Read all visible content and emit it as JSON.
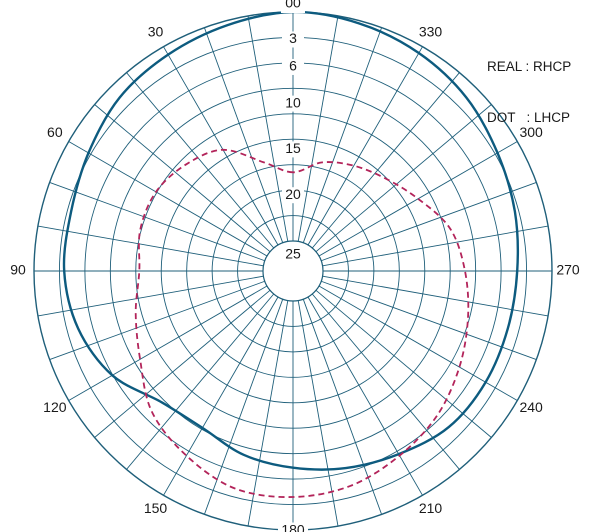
{
  "chart_data": {
    "type": "polar",
    "angle_labels": [
      {
        "angle": 0,
        "text": "00"
      },
      {
        "angle": 30,
        "text": "30"
      },
      {
        "angle": 60,
        "text": "60"
      },
      {
        "angle": 90,
        "text": "90"
      },
      {
        "angle": 120,
        "text": "120"
      },
      {
        "angle": 150,
        "text": "150"
      },
      {
        "angle": 180,
        "text": "180"
      },
      {
        "angle": 210,
        "text": "210"
      },
      {
        "angle": 240,
        "text": "240"
      },
      {
        "angle": 270,
        "text": "270"
      },
      {
        "angle": 300,
        "text": "300"
      },
      {
        "angle": 330,
        "text": "330"
      }
    ],
    "radial_labels": [
      "3",
      "6",
      "10",
      "15",
      "20",
      "25"
    ],
    "radial_range": [
      0,
      25
    ],
    "legend": [
      "REAL : RHCP",
      "DOT   : LHCP"
    ],
    "grid": true,
    "colors": {
      "grid": "#1f5f7a",
      "rhcp": "#0d5b7f",
      "lhcp": "#b3245a"
    },
    "series": [
      {
        "name": "RHCP",
        "style": "solid",
        "points": [
          [
            0,
            0.0
          ],
          [
            15,
            0.5
          ],
          [
            30,
            1.0
          ],
          [
            45,
            1.5
          ],
          [
            60,
            2.5
          ],
          [
            75,
            3.2
          ],
          [
            90,
            3.3
          ],
          [
            105,
            4.0
          ],
          [
            120,
            5.5
          ],
          [
            135,
            8.0
          ],
          [
            150,
            8.5
          ],
          [
            165,
            7.5
          ],
          [
            180,
            6.8
          ],
          [
            195,
            6.0
          ],
          [
            210,
            5.2
          ],
          [
            225,
            4.2
          ],
          [
            240,
            4.0
          ],
          [
            255,
            4.0
          ],
          [
            270,
            3.8
          ],
          [
            285,
            3.2
          ],
          [
            300,
            2.5
          ],
          [
            315,
            1.5
          ],
          [
            330,
            0.8
          ],
          [
            345,
            0.3
          ]
        ]
      },
      {
        "name": "LHCP",
        "style": "dashed",
        "points": [
          [
            0,
            17.5
          ],
          [
            15,
            16.0
          ],
          [
            30,
            13.0
          ],
          [
            45,
            11.8
          ],
          [
            60,
            11.0
          ],
          [
            75,
            11.0
          ],
          [
            90,
            11.5
          ],
          [
            105,
            10.5
          ],
          [
            120,
            9.0
          ],
          [
            135,
            6.5
          ],
          [
            150,
            5.0
          ],
          [
            165,
            3.7
          ],
          [
            180,
            3.6
          ],
          [
            195,
            4.0
          ],
          [
            210,
            5.0
          ],
          [
            225,
            6.0
          ],
          [
            240,
            7.3
          ],
          [
            255,
            8.5
          ],
          [
            270,
            9.5
          ],
          [
            285,
            10.5
          ],
          [
            300,
            12.5
          ],
          [
            315,
            14.0
          ],
          [
            330,
            15.0
          ],
          [
            345,
            16.0
          ]
        ]
      }
    ]
  }
}
